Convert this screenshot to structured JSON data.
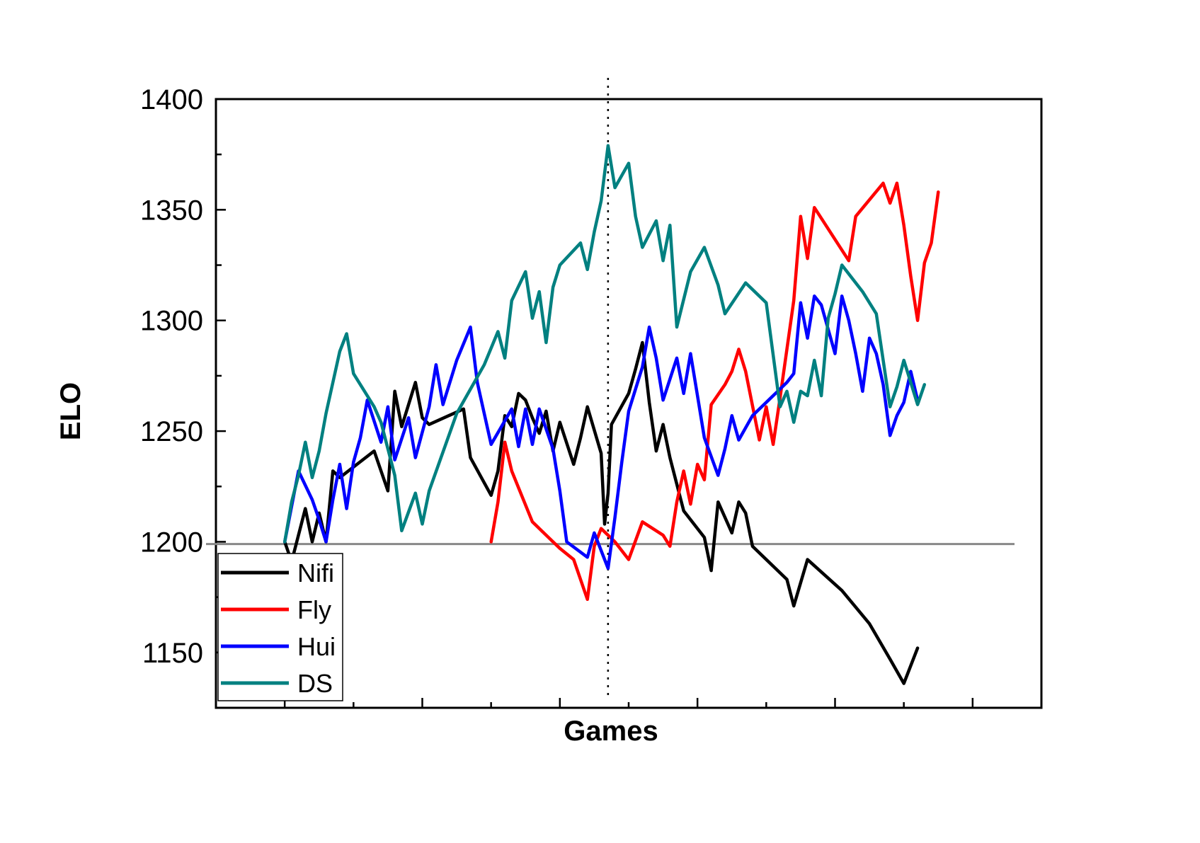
{
  "chart_data": {
    "type": "line",
    "title": "",
    "xlabel": "Games",
    "ylabel": "ELO",
    "xlim": [
      -10,
      110
    ],
    "ylim": [
      1125,
      1400
    ],
    "yticks": [
      1150,
      1200,
      1250,
      1300,
      1350,
      1400
    ],
    "xticks_unlabeled": [
      0,
      10,
      20,
      30,
      40,
      50,
      60,
      70,
      80,
      90,
      100
    ],
    "grid": false,
    "legend_position": "bottom-left",
    "reference_hline": 1199,
    "reference_vline": 47,
    "reference_hline_color": "#888888",
    "series": [
      {
        "name": "Nifi",
        "color": "#000000",
        "points": [
          [
            0,
            1200
          ],
          [
            1,
            1191
          ],
          [
            3,
            1215
          ],
          [
            4,
            1200
          ],
          [
            5,
            1213
          ],
          [
            6,
            1200
          ],
          [
            7,
            1232
          ],
          [
            8,
            1229
          ],
          [
            13,
            1241
          ],
          [
            15,
            1223
          ],
          [
            16,
            1268
          ],
          [
            17,
            1252
          ],
          [
            18,
            1262
          ],
          [
            19,
            1272
          ],
          [
            20,
            1256
          ],
          [
            21,
            1253
          ],
          [
            26,
            1260
          ],
          [
            27,
            1238
          ],
          [
            30,
            1221
          ],
          [
            31,
            1232
          ],
          [
            32,
            1257
          ],
          [
            33,
            1252
          ],
          [
            34,
            1267
          ],
          [
            35,
            1264
          ],
          [
            36,
            1256
          ],
          [
            37,
            1249
          ],
          [
            38,
            1259
          ],
          [
            39,
            1241
          ],
          [
            40,
            1254
          ],
          [
            42,
            1235
          ],
          [
            43,
            1247
          ],
          [
            44,
            1261
          ],
          [
            46,
            1240
          ],
          [
            46.5,
            1208
          ],
          [
            47,
            1222
          ],
          [
            47.5,
            1253
          ],
          [
            50,
            1267
          ],
          [
            51,
            1278
          ],
          [
            52,
            1290
          ],
          [
            53,
            1263
          ],
          [
            54,
            1241
          ],
          [
            55,
            1253
          ],
          [
            56,
            1238
          ],
          [
            57,
            1226
          ],
          [
            58,
            1214
          ],
          [
            61,
            1202
          ],
          [
            62,
            1187
          ],
          [
            63,
            1218
          ],
          [
            65,
            1204
          ],
          [
            66,
            1218
          ],
          [
            67,
            1213
          ],
          [
            68,
            1198
          ],
          [
            73,
            1183
          ],
          [
            74,
            1171
          ],
          [
            76,
            1192
          ],
          [
            81,
            1178
          ],
          [
            85,
            1163
          ],
          [
            88,
            1147
          ],
          [
            90,
            1136
          ],
          [
            92,
            1152
          ]
        ]
      },
      {
        "name": "Fly",
        "color": "#ff0000",
        "points": [
          [
            30,
            1200
          ],
          [
            31,
            1218
          ],
          [
            32,
            1245
          ],
          [
            33,
            1232
          ],
          [
            36,
            1209
          ],
          [
            40,
            1197
          ],
          [
            42,
            1192
          ],
          [
            44,
            1174
          ],
          [
            45,
            1198
          ],
          [
            46,
            1206
          ],
          [
            48,
            1200
          ],
          [
            50,
            1192
          ],
          [
            52,
            1209
          ],
          [
            55,
            1203
          ],
          [
            56,
            1198
          ],
          [
            57,
            1218
          ],
          [
            58,
            1232
          ],
          [
            59,
            1217
          ],
          [
            60,
            1235
          ],
          [
            61,
            1228
          ],
          [
            62,
            1262
          ],
          [
            64,
            1271
          ],
          [
            65,
            1277
          ],
          [
            66,
            1287
          ],
          [
            67,
            1277
          ],
          [
            69,
            1246
          ],
          [
            70,
            1261
          ],
          [
            71,
            1244
          ],
          [
            72,
            1265
          ],
          [
            73,
            1287
          ],
          [
            74,
            1309
          ],
          [
            75,
            1347
          ],
          [
            76,
            1328
          ],
          [
            77,
            1351
          ],
          [
            82,
            1327
          ],
          [
            83,
            1347
          ],
          [
            87,
            1362
          ],
          [
            88,
            1353
          ],
          [
            89,
            1362
          ],
          [
            90,
            1343
          ],
          [
            91,
            1320
          ],
          [
            92,
            1300
          ],
          [
            93,
            1326
          ],
          [
            94,
            1335
          ],
          [
            95,
            1358
          ]
        ]
      },
      {
        "name": "Hui",
        "color": "#0000ff",
        "points": [
          [
            0,
            1200
          ],
          [
            1,
            1216
          ],
          [
            2,
            1232
          ],
          [
            4,
            1219
          ],
          [
            5,
            1210
          ],
          [
            6,
            1200
          ],
          [
            7,
            1219
          ],
          [
            8,
            1235
          ],
          [
            9,
            1215
          ],
          [
            10,
            1236
          ],
          [
            11,
            1247
          ],
          [
            12,
            1264
          ],
          [
            14,
            1245
          ],
          [
            15,
            1261
          ],
          [
            16,
            1237
          ],
          [
            18,
            1256
          ],
          [
            19,
            1238
          ],
          [
            21,
            1261
          ],
          [
            22,
            1280
          ],
          [
            23,
            1262
          ],
          [
            25,
            1282
          ],
          [
            27,
            1297
          ],
          [
            28,
            1272
          ],
          [
            30,
            1244
          ],
          [
            33,
            1260
          ],
          [
            34,
            1243
          ],
          [
            35,
            1260
          ],
          [
            36,
            1244
          ],
          [
            37,
            1260
          ],
          [
            39,
            1242
          ],
          [
            40,
            1223
          ],
          [
            41,
            1200
          ],
          [
            44,
            1193
          ],
          [
            45,
            1204
          ],
          [
            47,
            1188
          ],
          [
            48,
            1211
          ],
          [
            49,
            1236
          ],
          [
            50,
            1259
          ],
          [
            51,
            1269
          ],
          [
            52,
            1279
          ],
          [
            53,
            1297
          ],
          [
            54,
            1283
          ],
          [
            55,
            1264
          ],
          [
            57,
            1283
          ],
          [
            58,
            1267
          ],
          [
            59,
            1285
          ],
          [
            60,
            1266
          ],
          [
            61,
            1247
          ],
          [
            63,
            1230
          ],
          [
            64,
            1242
          ],
          [
            65,
            1257
          ],
          [
            66,
            1246
          ],
          [
            68,
            1257
          ],
          [
            73,
            1272
          ],
          [
            74,
            1276
          ],
          [
            75,
            1308
          ],
          [
            76,
            1292
          ],
          [
            77,
            1311
          ],
          [
            78,
            1307
          ],
          [
            80,
            1285
          ],
          [
            81,
            1311
          ],
          [
            82,
            1300
          ],
          [
            83,
            1285
          ],
          [
            84,
            1268
          ],
          [
            85,
            1292
          ],
          [
            86,
            1285
          ],
          [
            87,
            1271
          ],
          [
            88,
            1248
          ],
          [
            89,
            1257
          ],
          [
            90,
            1263
          ],
          [
            91,
            1277
          ],
          [
            92,
            1264
          ]
        ]
      },
      {
        "name": "DS",
        "color": "#008080",
        "points": [
          [
            0,
            1200
          ],
          [
            1,
            1218
          ],
          [
            2,
            1230
          ],
          [
            3,
            1245
          ],
          [
            4,
            1229
          ],
          [
            5,
            1241
          ],
          [
            6,
            1258
          ],
          [
            7,
            1272
          ],
          [
            8,
            1286
          ],
          [
            9,
            1294
          ],
          [
            10,
            1276
          ],
          [
            13,
            1261
          ],
          [
            14,
            1254
          ],
          [
            16,
            1230
          ],
          [
            17,
            1205
          ],
          [
            19,
            1222
          ],
          [
            20,
            1208
          ],
          [
            21,
            1223
          ],
          [
            25,
            1258
          ],
          [
            29,
            1280
          ],
          [
            31,
            1295
          ],
          [
            32,
            1283
          ],
          [
            33,
            1309
          ],
          [
            35,
            1322
          ],
          [
            36,
            1301
          ],
          [
            37,
            1313
          ],
          [
            38,
            1290
          ],
          [
            39,
            1315
          ],
          [
            40,
            1325
          ],
          [
            43,
            1335
          ],
          [
            44,
            1323
          ],
          [
            45,
            1340
          ],
          [
            46,
            1354
          ],
          [
            47,
            1379
          ],
          [
            48,
            1360
          ],
          [
            50,
            1371
          ],
          [
            51,
            1347
          ],
          [
            52,
            1333
          ],
          [
            54,
            1345
          ],
          [
            55,
            1327
          ],
          [
            56,
            1343
          ],
          [
            57,
            1297
          ],
          [
            59,
            1322
          ],
          [
            61,
            1333
          ],
          [
            63,
            1316
          ],
          [
            64,
            1303
          ],
          [
            67,
            1317
          ],
          [
            70,
            1308
          ],
          [
            72,
            1261
          ],
          [
            73,
            1268
          ],
          [
            74,
            1254
          ],
          [
            75,
            1268
          ],
          [
            76,
            1266
          ],
          [
            77,
            1282
          ],
          [
            78,
            1266
          ],
          [
            79,
            1301
          ],
          [
            80,
            1312
          ],
          [
            81,
            1325
          ],
          [
            84,
            1313
          ],
          [
            86,
            1303
          ],
          [
            88,
            1261
          ],
          [
            89,
            1270
          ],
          [
            90,
            1282
          ],
          [
            92,
            1262
          ],
          [
            93,
            1271
          ]
        ]
      }
    ]
  }
}
